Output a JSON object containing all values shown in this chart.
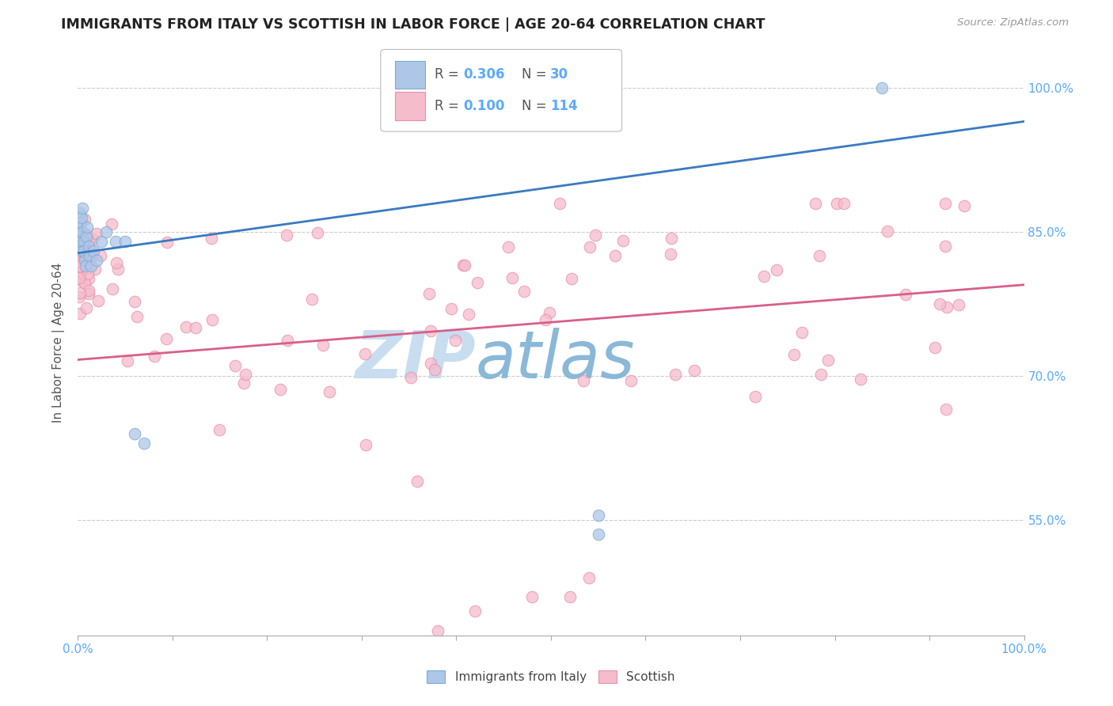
{
  "title": "IMMIGRANTS FROM ITALY VS SCOTTISH IN LABOR FORCE | AGE 20-64 CORRELATION CHART",
  "source": "Source: ZipAtlas.com",
  "ylabel": "In Labor Force | Age 20-64",
  "y_tick_values": [
    0.55,
    0.7,
    0.85,
    1.0
  ],
  "x_min": 0.0,
  "x_max": 1.0,
  "y_min": 0.43,
  "y_max": 1.04,
  "legend_labels": [
    "Immigrants from Italy",
    "Scottish"
  ],
  "italy_color": "#aec6e8",
  "scottish_color": "#f5bccb",
  "italy_edge": "#7faad4",
  "scottish_edge": "#e890aa",
  "italy_line_color": "#3a7abf",
  "scottish_line_color": "#d95f8a",
  "italy_R": 0.306,
  "italy_N": 30,
  "scottish_R": 0.1,
  "scottish_N": 114,
  "watermark_zip": "ZIP",
  "watermark_atlas": "atlas",
  "watermark_color_zip": "#c8ddf0",
  "watermark_color_atlas": "#8ab8d8",
  "title_color": "#222222",
  "source_color": "#999999",
  "axis_label_color": "#555555",
  "tick_color_right": "#5aaaff",
  "tick_color_bottom": "#5aaaff",
  "grid_color": "#cccccc",
  "italy_line_x0": 0.0,
  "italy_line_y0": 0.828,
  "italy_line_x1": 1.0,
  "italy_line_y1": 0.965,
  "scottish_line_x0": 0.0,
  "scottish_line_y0": 0.717,
  "scottish_line_x1": 1.0,
  "scottish_line_y1": 0.795
}
